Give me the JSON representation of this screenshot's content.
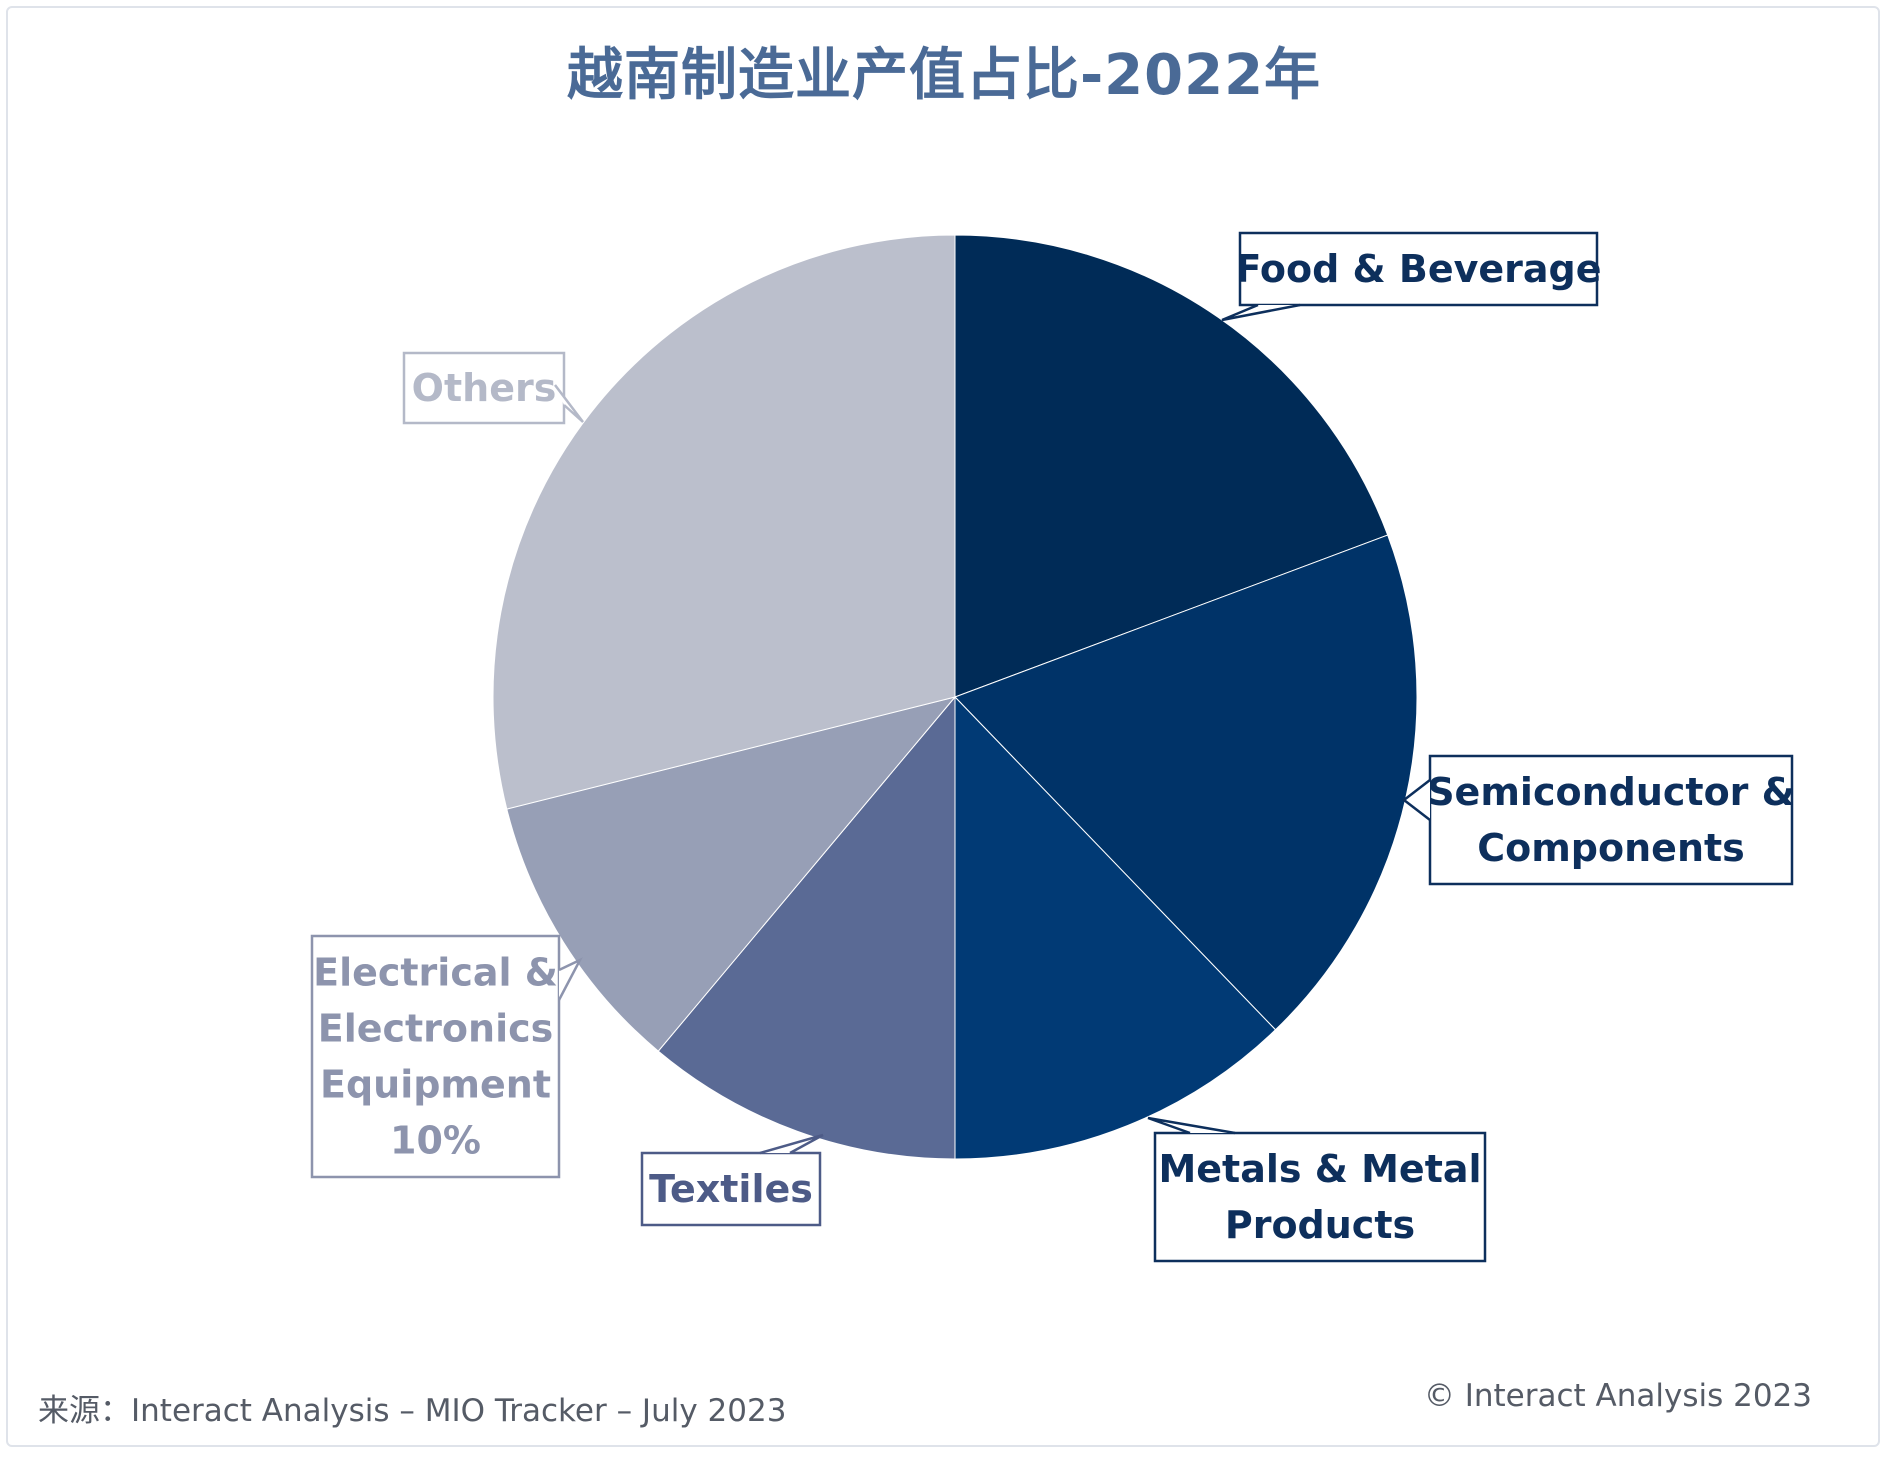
{
  "title": "越南制造业产值占比-2022年",
  "source": "来源：Interact Analysis – MIO Tracker – July 2023",
  "copyright": "© Interact Analysis 2023",
  "chart_data": {
    "type": "pie",
    "title": "越南制造业产值占比-2022年",
    "slices": [
      {
        "label": [
          "Food & Beverage"
        ],
        "value": 19.3,
        "color": "#002b57",
        "label_color": "#0d2f5c"
      },
      {
        "label": [
          "Semiconductor &",
          "Components"
        ],
        "value": 18.5,
        "color": "#003368",
        "label_color": "#0d2f5c"
      },
      {
        "label": [
          "Metals & Metal",
          "Products"
        ],
        "value": 12.2,
        "color": "#013a75",
        "label_color": "#0d2f5c"
      },
      {
        "label": [
          "Textiles"
        ],
        "value": 11.1,
        "color": "#5a6a95",
        "label_color": "#4d5b87"
      },
      {
        "label": [
          "Electrical &",
          "Electronics",
          "Equipment",
          "10%"
        ],
        "value": 10,
        "color": "#979fb6",
        "label_color": "#8d94ad"
      },
      {
        "label": [
          "Others"
        ],
        "value": 28.9,
        "color": "#bbbfcc",
        "label_color": "#b4b9c8"
      }
    ]
  }
}
